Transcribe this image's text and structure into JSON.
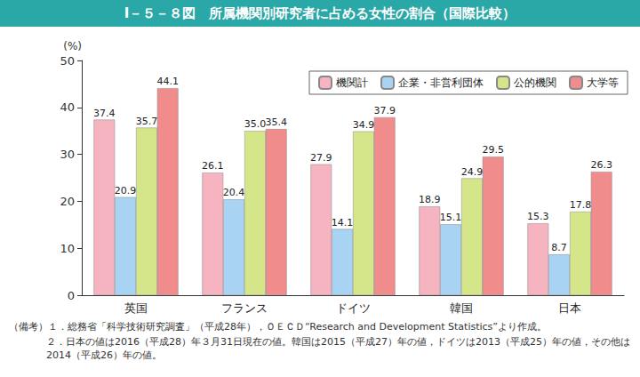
{
  "chart_data": {
    "type": "bar",
    "title": "Ⅰ－５－８図　所属機関別研究者に占める女性の割合（国際比較）",
    "y_label": "(%)",
    "categories": [
      "英国",
      "フランス",
      "ドイツ",
      "韓国",
      "日本"
    ],
    "series": [
      {
        "name": "機関計",
        "color": "#f6b3c0",
        "values": [
          37.4,
          26.1,
          27.9,
          18.9,
          15.3
        ]
      },
      {
        "name": "企業・非営利団体",
        "color": "#a9d3f2",
        "values": [
          20.9,
          20.4,
          14.1,
          15.1,
          8.7
        ]
      },
      {
        "name": "公的機関",
        "color": "#d5e68a",
        "values": [
          35.7,
          35.0,
          34.9,
          24.9,
          17.8
        ],
        "value_labels": [
          "35.7",
          "35.0",
          "34.9",
          "24.9",
          "17.8"
        ]
      },
      {
        "name": "大学等",
        "color": "#f08c8c",
        "values": [
          44.1,
          35.4,
          37.9,
          29.5,
          26.3
        ]
      }
    ],
    "ylim": [
      0,
      50
    ],
    "yticks": [
      0,
      10,
      20,
      30,
      40,
      50
    ],
    "grid": false,
    "legend": "top-right",
    "data_labels": true,
    "notes": [
      "（備考）１．総務省「科学技術研究調査」（平成28年），ＯＥＣＤ“Research and Development Statistics”より作成。",
      "２．日本の値は2016（平成28）年３月31日現在の値。韓国は2015（平成27）年の値，ドイツは2013（平成25）年の値，その他は2014（平成26）年の値。"
    ]
  }
}
